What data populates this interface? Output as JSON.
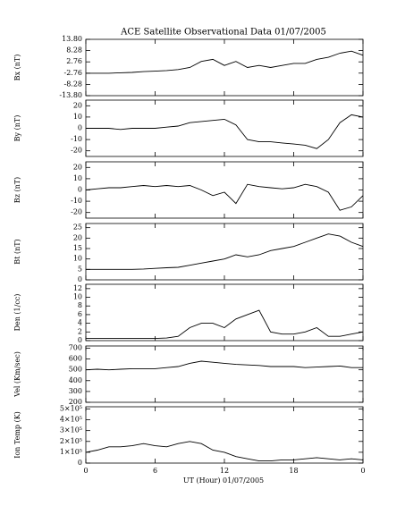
{
  "chart_data": [
    {
      "type": "line",
      "title": "ACE Satellite Observational Data  01/07/2005",
      "y_label": "Bx (nT)",
      "x": [
        0,
        1,
        2,
        3,
        4,
        5,
        6,
        7,
        8,
        9,
        10,
        11,
        12,
        13,
        14,
        15,
        16,
        17,
        18,
        19,
        20,
        21,
        22,
        23,
        24
      ],
      "values": [
        -2.8,
        -2.8,
        -2.8,
        -2.6,
        -2.4,
        -2,
        -1.8,
        -1.5,
        -1,
        0,
        3,
        4,
        1,
        3,
        0,
        1,
        0,
        1,
        2,
        2,
        4,
        5,
        7,
        8,
        6
      ],
      "color": "#000000",
      "xlim": [
        0,
        24
      ],
      "ylim": [
        -13.8,
        13.8
      ],
      "yticks": [
        {
          "value": -13.8,
          "label": "-13.80"
        },
        -8.28,
        -2.76,
        2.76,
        8.28,
        {
          "value": 13.8,
          "label": "13.80"
        }
      ]
    },
    {
      "type": "line",
      "y_label": "By (nT)",
      "x": [
        0,
        1,
        2,
        3,
        4,
        5,
        6,
        7,
        8,
        9,
        10,
        11,
        12,
        13,
        14,
        15,
        16,
        17,
        18,
        19,
        20,
        21,
        22,
        23,
        24
      ],
      "values": [
        0,
        0,
        0,
        -1,
        0,
        0,
        0,
        1,
        2,
        5,
        6,
        7,
        8,
        3,
        -10,
        -12,
        -12,
        -13,
        -14,
        -15,
        -18,
        -10,
        5,
        12,
        10
      ],
      "color": "#000000",
      "xlim": [
        0,
        24
      ],
      "ylim": [
        -25,
        25
      ],
      "yticks": [
        -20,
        -10,
        0,
        10,
        20
      ]
    },
    {
      "type": "line",
      "y_label": "Bz (nT)",
      "x": [
        0,
        1,
        2,
        3,
        4,
        5,
        6,
        7,
        8,
        9,
        10,
        11,
        12,
        13,
        14,
        15,
        16,
        17,
        18,
        19,
        20,
        21,
        22,
        23,
        24
      ],
      "values": [
        0,
        1,
        2,
        2,
        3,
        4,
        3,
        4,
        3,
        4,
        0,
        -5,
        -2,
        -12,
        5,
        3,
        2,
        1,
        2,
        5,
        3,
        -2,
        -18,
        -15,
        -5
      ],
      "color": "#000000",
      "xlim": [
        0,
        24
      ],
      "ylim": [
        -25,
        25
      ],
      "yticks": [
        -20,
        -10,
        0,
        10,
        20
      ]
    },
    {
      "type": "line",
      "y_label": "Bt (nT)",
      "x": [
        0,
        1,
        2,
        3,
        4,
        5,
        6,
        7,
        8,
        9,
        10,
        11,
        12,
        13,
        14,
        15,
        16,
        17,
        18,
        19,
        20,
        21,
        22,
        23,
        24
      ],
      "values": [
        5,
        5,
        5,
        5,
        5,
        5.2,
        5.5,
        5.8,
        6,
        7,
        8,
        9,
        10,
        12,
        11,
        12,
        14,
        15,
        16,
        18,
        20,
        22,
        21,
        18,
        16
      ],
      "color": "#000000",
      "xlim": [
        0,
        24
      ],
      "ylim": [
        0,
        27
      ],
      "yticks": [
        0,
        5,
        10,
        15,
        20,
        25
      ]
    },
    {
      "type": "line",
      "y_label": "Den (1/cc)",
      "x": [
        0,
        1,
        2,
        3,
        4,
        5,
        6,
        7,
        8,
        9,
        10,
        11,
        12,
        13,
        14,
        15,
        16,
        17,
        18,
        19,
        20,
        21,
        22,
        23,
        24
      ],
      "values": [
        0.5,
        0.5,
        0.5,
        0.5,
        0.5,
        0.5,
        0.5,
        0.6,
        1,
        3,
        4,
        4,
        3,
        5,
        6,
        7,
        2,
        1.5,
        1.5,
        2,
        3,
        1,
        1,
        1.5,
        2
      ],
      "color": "#000000",
      "xlim": [
        0,
        24
      ],
      "ylim": [
        0,
        13
      ],
      "yticks": [
        0,
        2,
        4,
        6,
        8,
        10,
        12
      ]
    },
    {
      "type": "line",
      "y_label": "Vel (Km/sec)",
      "x": [
        0,
        1,
        2,
        3,
        4,
        5,
        6,
        7,
        8,
        9,
        10,
        11,
        12,
        13,
        14,
        15,
        16,
        17,
        18,
        19,
        20,
        21,
        22,
        23,
        24
      ],
      "values": [
        500,
        505,
        500,
        505,
        510,
        510,
        510,
        520,
        530,
        560,
        580,
        570,
        560,
        550,
        545,
        540,
        530,
        530,
        530,
        520,
        525,
        530,
        535,
        520,
        520
      ],
      "color": "#000000",
      "xlim": [
        0,
        24
      ],
      "ylim": [
        200,
        720
      ],
      "yticks": [
        200,
        300,
        400,
        500,
        600,
        700
      ]
    },
    {
      "type": "line",
      "y_label": "Ion Temp (K)",
      "x_label": "UT (Hour)  01/07/2005",
      "x": [
        0,
        1,
        2,
        3,
        4,
        5,
        6,
        7,
        8,
        9,
        10,
        11,
        12,
        13,
        14,
        15,
        16,
        17,
        18,
        19,
        20,
        21,
        22,
        23,
        24
      ],
      "values": [
        100000,
        120000,
        150000,
        150000,
        160000,
        180000,
        160000,
        150000,
        180000,
        200000,
        180000,
        120000,
        100000,
        60000,
        40000,
        20000,
        20000,
        30000,
        30000,
        40000,
        50000,
        40000,
        30000,
        40000,
        30000
      ],
      "color": "#000000",
      "xlim": [
        0,
        24
      ],
      "ylim": [
        0,
        520000
      ],
      "yticks": [
        0,
        {
          "value": 100000,
          "label": "1×10⁵"
        },
        {
          "value": 200000,
          "label": "2×10⁵"
        },
        {
          "value": 300000,
          "label": "3×10⁵"
        },
        {
          "value": 400000,
          "label": "4×10⁵"
        },
        {
          "value": 500000,
          "label": "5×10⁵"
        }
      ],
      "xticks": [
        0,
        6,
        12,
        18,
        {
          "value": 24,
          "label": "0"
        }
      ]
    }
  ]
}
